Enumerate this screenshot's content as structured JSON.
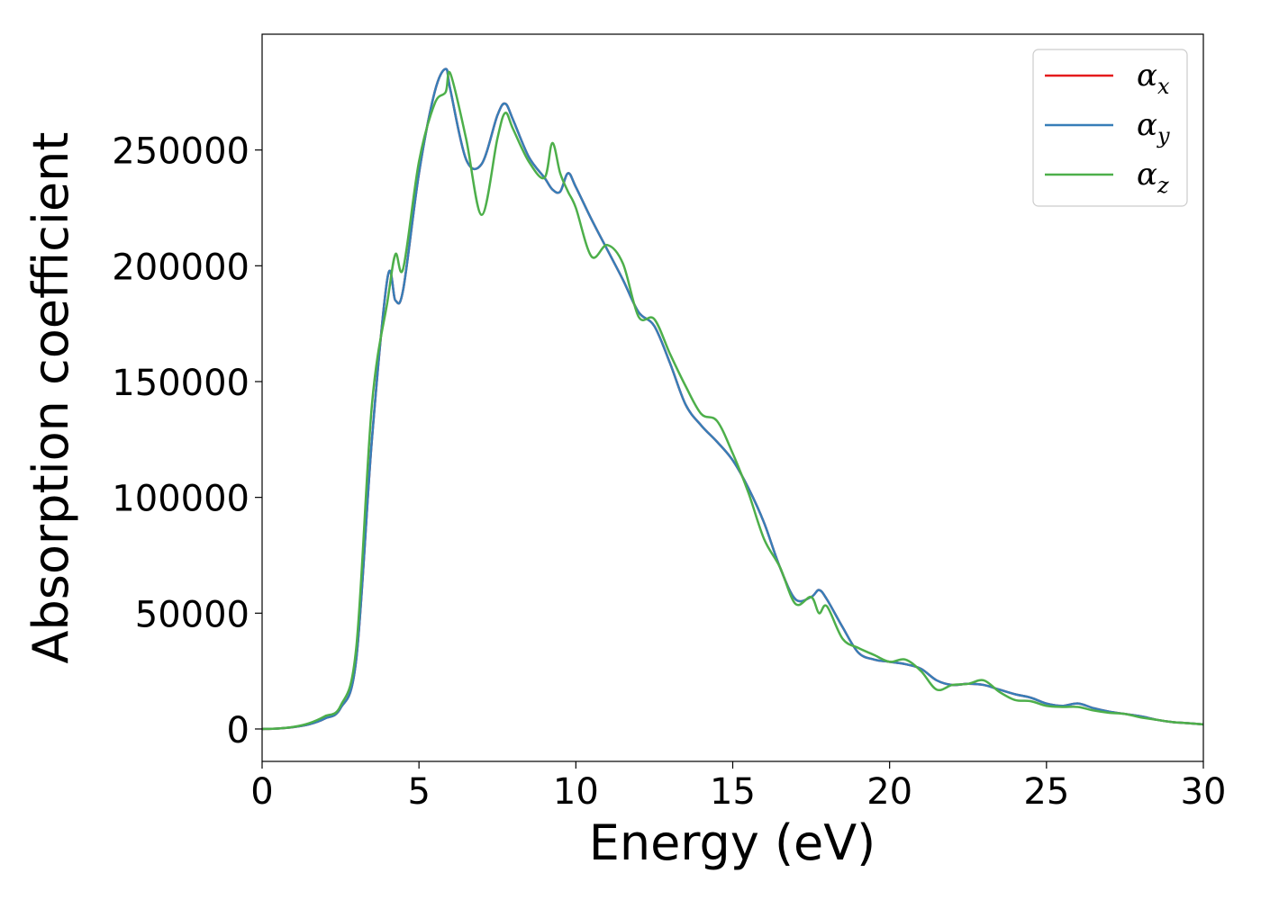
{
  "chart_data": {
    "type": "line",
    "xlabel": "Energy (eV)",
    "ylabel": "Absorption coefficient",
    "xlim": [
      0,
      30
    ],
    "ylim": [
      -14000,
      300000
    ],
    "xticks": [
      0,
      5,
      10,
      15,
      20,
      25,
      30
    ],
    "yticks": [
      0,
      50000,
      100000,
      150000,
      200000,
      250000
    ],
    "x_tick_labels": [
      "0",
      "5",
      "10",
      "15",
      "20",
      "25",
      "30"
    ],
    "y_tick_labels": [
      "0",
      "50000",
      "100000",
      "150000",
      "200000",
      "250000"
    ],
    "grid": false,
    "legend_position": "upper-right",
    "x": [
      0,
      0.5,
      1,
      1.5,
      2,
      2.5,
      3,
      3.5,
      4,
      4.25,
      4.5,
      5,
      5.5,
      5.85,
      6,
      6.5,
      7,
      7.5,
      7.75,
      8,
      8.5,
      9,
      9.25,
      9.5,
      9.75,
      10,
      10.5,
      11,
      11.5,
      12,
      12.5,
      13,
      13.5,
      14,
      14.5,
      15,
      15.5,
      16,
      16.5,
      17,
      17.5,
      17.75,
      18,
      18.5,
      19,
      19.5,
      20,
      20.5,
      21,
      21.5,
      22,
      22.5,
      23,
      23.5,
      24,
      24.5,
      25,
      25.5,
      26,
      26.5,
      27,
      27.5,
      28,
      28.5,
      29,
      29.5,
      30
    ],
    "series": [
      {
        "name": "αx",
        "label_main": "α",
        "label_sub": "x",
        "color": "#e41a1c",
        "values": [
          0,
          200,
          800,
          2000,
          4500,
          9000,
          30000,
          125000,
          195000,
          185000,
          190000,
          240000,
          275000,
          285000,
          276000,
          246000,
          244000,
          265000,
          270000,
          263000,
          247000,
          238000,
          233000,
          232000,
          240000,
          234000,
          220000,
          207000,
          194000,
          180000,
          174000,
          158000,
          140000,
          131000,
          124000,
          116000,
          104000,
          89000,
          70000,
          56000,
          57000,
          60000,
          56000,
          44000,
          33000,
          30000,
          29000,
          28000,
          26000,
          21000,
          19000,
          19500,
          19000,
          17000,
          15000,
          13500,
          11000,
          10000,
          11000,
          9000,
          7500,
          6500,
          5500,
          4000,
          3000,
          2500,
          2000
        ]
      },
      {
        "name": "αy",
        "label_main": "α",
        "label_sub": "y",
        "color": "#377eb8",
        "values": [
          0,
          200,
          800,
          2000,
          4500,
          9000,
          30000,
          125000,
          195000,
          185000,
          190000,
          240000,
          275000,
          285000,
          276000,
          246000,
          244000,
          265000,
          270000,
          263000,
          247000,
          238000,
          233000,
          232000,
          240000,
          234000,
          220000,
          207000,
          194000,
          180000,
          174000,
          158000,
          140000,
          131000,
          124000,
          116000,
          104000,
          89000,
          70000,
          56000,
          57000,
          60000,
          56000,
          44000,
          33000,
          30000,
          29000,
          28000,
          26000,
          21000,
          19000,
          19500,
          19000,
          17000,
          15000,
          13500,
          11000,
          10000,
          11000,
          9000,
          7500,
          6500,
          5500,
          4000,
          3000,
          2500,
          2000
        ]
      },
      {
        "name": "αz",
        "label_main": "α",
        "label_sub": "z",
        "color": "#4daf4a",
        "values": [
          0,
          200,
          900,
          2500,
          5500,
          10000,
          35000,
          140000,
          185000,
          205000,
          199000,
          245000,
          270000,
          275000,
          283000,
          255000,
          222000,
          255000,
          266000,
          259000,
          245000,
          238000,
          253000,
          240000,
          232000,
          225000,
          204000,
          209000,
          201000,
          178000,
          177000,
          162000,
          148000,
          136000,
          133000,
          119000,
          102000,
          82000,
          70000,
          54000,
          57000,
          50000,
          53000,
          39000,
          35000,
          32000,
          29000,
          30000,
          25000,
          17000,
          19000,
          19500,
          21000,
          16000,
          12500,
          12000,
          10000,
          9500,
          9500,
          8000,
          7000,
          6500,
          5000,
          4000,
          3000,
          2500,
          2000
        ]
      }
    ]
  }
}
